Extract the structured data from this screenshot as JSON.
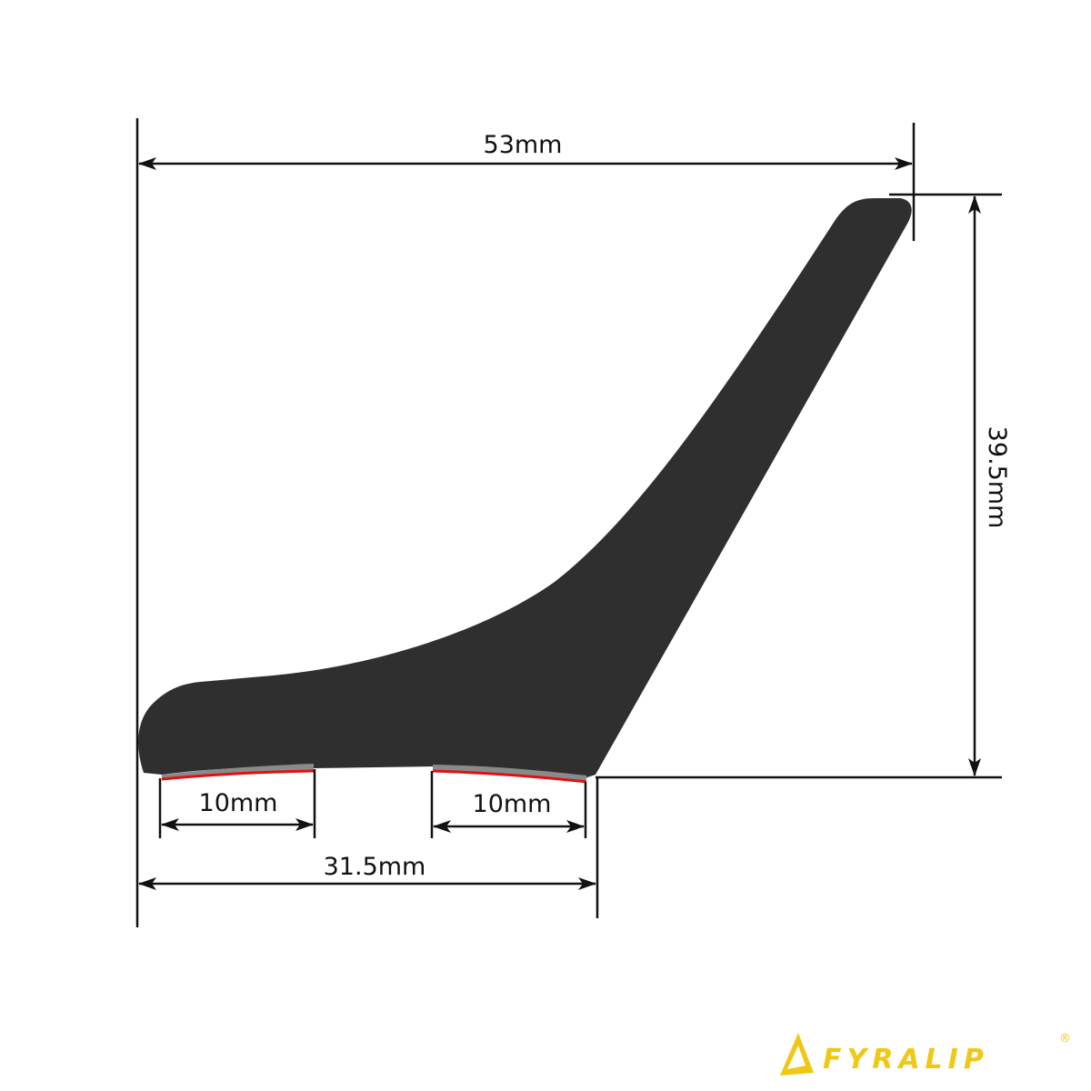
{
  "dimensions": {
    "total_width": "53mm",
    "height": "39.5mm",
    "base_width": "31.5mm",
    "tape_left": "10mm",
    "tape_right": "10mm"
  },
  "logo": {
    "text": "FYRALIP",
    "registered": "®"
  },
  "colors": {
    "profile": "#2f2f2f",
    "tape": "#8a8a8a",
    "tape_liner": "#e01010",
    "logo": "#f0c814",
    "lines": "#111111"
  }
}
